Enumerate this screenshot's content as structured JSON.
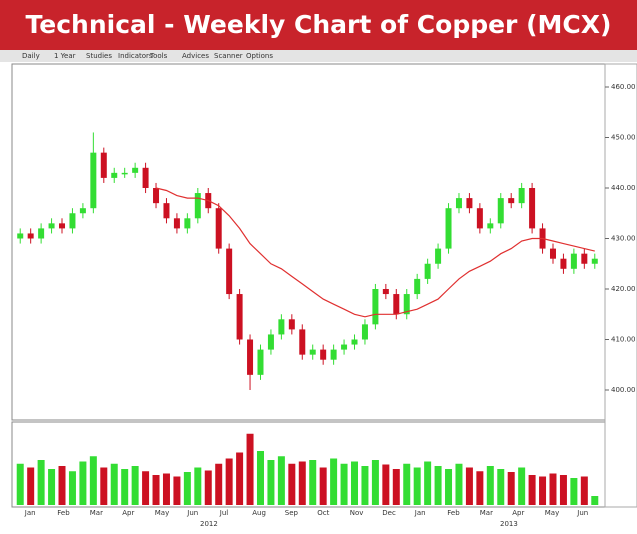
{
  "chart_data": {
    "type": "candlestick",
    "title": "Technical  - Weekly Chart of Copper (MCX)",
    "toolbar": [
      "Daily",
      "1 Year",
      "Studies",
      "Indicators",
      "Tools",
      "Advices",
      "Scanner",
      "Options"
    ],
    "categories": [
      "Jan",
      "Feb",
      "Mar",
      "Apr",
      "May",
      "Jun",
      "Jul",
      "Aug",
      "Sep",
      "Oct",
      "Nov",
      "Dec",
      "Jan",
      "Feb",
      "Mar",
      "Apr",
      "May",
      "Jun"
    ],
    "years": [
      "2012",
      "2013"
    ],
    "open": [
      430,
      431,
      430,
      432,
      433,
      432,
      435,
      436,
      447,
      442,
      443,
      443,
      444,
      440,
      437,
      434,
      432,
      434,
      439,
      436,
      428,
      419,
      410,
      403,
      408,
      411,
      414,
      412,
      407,
      408,
      406,
      408,
      409,
      410,
      413,
      420,
      419,
      415,
      419,
      422,
      425,
      428,
      436,
      438,
      436,
      432,
      433,
      438,
      437,
      440,
      432,
      428,
      426,
      424,
      427,
      425
    ],
    "high": [
      432,
      432,
      433,
      434,
      434,
      436,
      437,
      451,
      448,
      444,
      444,
      445,
      445,
      441,
      438,
      435,
      435,
      440,
      440,
      437,
      429,
      420,
      411,
      409,
      412,
      415,
      415,
      413,
      409,
      409,
      409,
      410,
      411,
      414,
      421,
      421,
      420,
      420,
      423,
      426,
      429,
      437,
      439,
      439,
      437,
      434,
      439,
      439,
      441,
      441,
      433,
      429,
      427,
      428,
      428,
      427
    ],
    "low": [
      429,
      429,
      429,
      431,
      431,
      431,
      434,
      435,
      441,
      441,
      442,
      442,
      439,
      436,
      433,
      431,
      431,
      433,
      435,
      427,
      418,
      409,
      400,
      402,
      407,
      410,
      411,
      406,
      406,
      405,
      405,
      407,
      408,
      409,
      412,
      418,
      414,
      414,
      418,
      421,
      424,
      427,
      435,
      435,
      431,
      431,
      432,
      436,
      436,
      431,
      427,
      425,
      423,
      423,
      424,
      424
    ],
    "close": [
      431,
      430,
      432,
      433,
      432,
      435,
      436,
      447,
      442,
      443,
      443,
      444,
      440,
      437,
      434,
      432,
      434,
      439,
      436,
      428,
      419,
      410,
      403,
      408,
      411,
      414,
      412,
      407,
      408,
      406,
      408,
      409,
      410,
      413,
      420,
      419,
      415,
      419,
      422,
      425,
      428,
      436,
      438,
      436,
      432,
      433,
      438,
      437,
      440,
      432,
      428,
      426,
      424,
      427,
      425,
      426
    ],
    "ema": [
      null,
      null,
      null,
      null,
      null,
      null,
      null,
      null,
      null,
      null,
      null,
      null,
      null,
      440,
      439.5,
      438.5,
      438,
      438,
      437.5,
      436.5,
      434.5,
      432,
      429,
      427,
      425,
      424,
      422.5,
      421,
      419.5,
      418,
      417,
      416,
      415,
      414.5,
      415,
      415,
      415,
      415.5,
      416,
      417,
      418,
      420,
      422,
      423.5,
      424.5,
      425.5,
      427,
      428,
      429.5,
      430,
      430,
      429.5,
      429,
      428.5,
      428,
      427.5
    ],
    "ema_color": "#e03030",
    "volume": [
      55,
      50,
      60,
      48,
      52,
      45,
      58,
      65,
      50,
      55,
      48,
      52,
      45,
      40,
      42,
      38,
      44,
      50,
      46,
      55,
      62,
      70,
      95,
      72,
      60,
      65,
      55,
      58,
      60,
      50,
      62,
      55,
      58,
      52,
      60,
      54,
      48,
      55,
      50,
      58,
      52,
      48,
      55,
      50,
      45,
      52,
      48,
      44,
      50,
      40,
      38,
      42,
      40,
      36,
      38,
      12
    ],
    "vlim": [
      0,
      100
    ],
    "up_color": "#33dd33",
    "down_color": "#cc1122",
    "ylim": [
      400,
      460
    ],
    "yticks": [
      {
        "value": 400,
        "label": "400.00"
      },
      {
        "value": 410,
        "label": "410.00"
      },
      {
        "value": 420,
        "label": "420.00"
      },
      {
        "value": 430,
        "label": "430.00"
      },
      {
        "value": 440,
        "label": "440.00"
      },
      {
        "value": 450,
        "label": "450.00"
      },
      {
        "value": 460,
        "label": "460.00"
      }
    ]
  }
}
